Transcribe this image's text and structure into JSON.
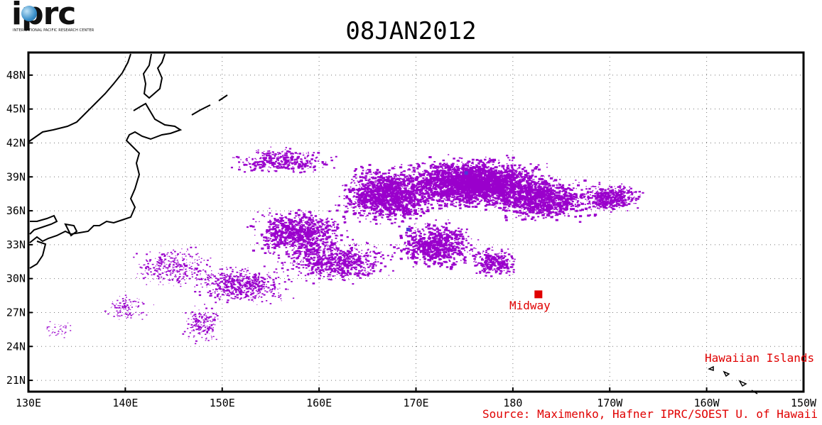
{
  "logo": {
    "text": "iprc",
    "subtitle": "INTERNATIONAL PACIFIC RESEARCH CENTER"
  },
  "title": "08JAN2012",
  "map": {
    "lat_range": [
      20,
      50
    ],
    "lon_range_east": [
      130,
      210
    ],
    "lat_ticks": [
      {
        "value": 48,
        "label": "48N"
      },
      {
        "value": 45,
        "label": "45N"
      },
      {
        "value": 42,
        "label": "42N"
      },
      {
        "value": 39,
        "label": "39N"
      },
      {
        "value": 36,
        "label": "36N"
      },
      {
        "value": 33,
        "label": "33N"
      },
      {
        "value": 30,
        "label": "30N"
      },
      {
        "value": 27,
        "label": "27N"
      },
      {
        "value": 24,
        "label": "24N"
      },
      {
        "value": 21,
        "label": "21N"
      }
    ],
    "lon_ticks": [
      {
        "value": 130,
        "label": "130E"
      },
      {
        "value": 140,
        "label": "140E"
      },
      {
        "value": 150,
        "label": "150E"
      },
      {
        "value": 160,
        "label": "160E"
      },
      {
        "value": 170,
        "label": "170E"
      },
      {
        "value": 180,
        "label": "180"
      },
      {
        "value": 190,
        "label": "170W"
      },
      {
        "value": 200,
        "label": "160W"
      },
      {
        "value": 210,
        "label": "150W"
      }
    ],
    "grid": "dotted",
    "debris_color": "#9a00cc",
    "debris_accent_color": "#4b3bd6",
    "land_color": "#000000",
    "labels": {
      "midway": "Midway",
      "hawaii": "Hawaiian Islands",
      "source": "Source: Maximenko, Hafner IPRC/SOEST U. of Hawaii"
    },
    "label_color": "#e00000",
    "midway_marker": {
      "lon": 182.6,
      "lat": 28.2
    }
  }
}
